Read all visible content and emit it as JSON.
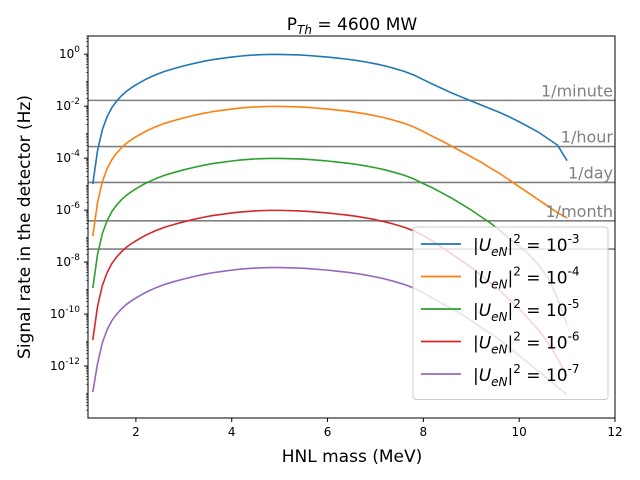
{
  "chart_data": {
    "type": "line",
    "title_base": "P",
    "title_sub": "Th",
    "title_rest": " = 4600 MW",
    "xlabel": "HNL mass (MeV)",
    "ylabel": "Signal rate in the detector (Hz)",
    "xlim": [
      1.0,
      12.0
    ],
    "ylim_log10": [
      -14.0,
      0.7
    ],
    "y_scale": "log",
    "grid": false,
    "legend_position": "lower-right",
    "x_ticks": [
      2,
      4,
      6,
      8,
      10,
      12
    ],
    "x_tick_labels": [
      "2",
      "4",
      "6",
      "8",
      "10",
      "12"
    ],
    "y_ticks": [
      {
        "exp": "0",
        "log10": 0
      },
      {
        "exp": "-2",
        "log10": -2
      },
      {
        "exp": "-4",
        "log10": -4
      },
      {
        "exp": "-6",
        "log10": -6
      },
      {
        "exp": "-8",
        "log10": -8
      },
      {
        "exp": "-10",
        "log10": -10
      },
      {
        "exp": "-12",
        "log10": -12
      }
    ],
    "hlines": [
      {
        "label": "1/minute",
        "value": 0.0167,
        "color": "#808080"
      },
      {
        "label": "1/hour",
        "value": 0.000278,
        "color": "#808080"
      },
      {
        "label": "1/day",
        "value": 1.16e-05,
        "color": "#808080"
      },
      {
        "label": "1/month",
        "value": 3.86e-07,
        "color": "#808080"
      },
      {
        "label": "",
        "value": 3.17e-08,
        "color": "#808080"
      }
    ],
    "x": [
      1.1,
      1.2,
      1.3,
      1.4,
      1.5,
      1.6,
      1.7,
      1.8,
      1.9,
      2.0,
      2.2,
      2.4,
      2.6,
      2.8,
      3.0,
      3.2,
      3.4,
      3.6,
      3.8,
      4.0,
      4.2,
      4.4,
      4.6,
      4.8,
      5.0,
      5.2,
      5.4,
      5.6,
      5.8,
      6.0,
      6.2,
      6.4,
      6.6,
      6.8,
      7.0,
      7.2,
      7.4,
      7.6,
      7.8,
      8.0,
      8.2,
      8.4,
      8.6,
      8.8,
      9.0,
      9.2,
      9.4,
      9.6,
      9.8,
      10.0,
      10.2,
      10.4,
      10.6,
      10.8,
      11.0
    ],
    "series": [
      {
        "label_base": "|U",
        "label_sub": "eN",
        "label_exp": "-3",
        "color": "#1f77b4",
        "log10_values": [
          -5.0,
          -3.7,
          -2.9,
          -2.4,
          -2.05,
          -1.8,
          -1.6,
          -1.43,
          -1.3,
          -1.18,
          -0.97,
          -0.8,
          -0.66,
          -0.55,
          -0.45,
          -0.36,
          -0.28,
          -0.21,
          -0.16,
          -0.11,
          -0.07,
          -0.04,
          -0.02,
          -0.01,
          -0.01,
          -0.02,
          -0.03,
          -0.05,
          -0.08,
          -0.11,
          -0.15,
          -0.19,
          -0.24,
          -0.3,
          -0.37,
          -0.45,
          -0.55,
          -0.66,
          -0.8,
          -0.98,
          -1.16,
          -1.33,
          -1.5,
          -1.65,
          -1.8,
          -1.95,
          -2.1,
          -2.25,
          -2.42,
          -2.6,
          -2.8,
          -3.0,
          -3.25,
          -3.5,
          -4.1
        ]
      },
      {
        "label_base": "|U",
        "label_sub": "eN",
        "label_exp": "-4",
        "color": "#ff7f0e",
        "log10_values": [
          -7.0,
          -5.7,
          -4.9,
          -4.4,
          -4.05,
          -3.8,
          -3.6,
          -3.43,
          -3.3,
          -3.18,
          -2.97,
          -2.8,
          -2.66,
          -2.55,
          -2.45,
          -2.36,
          -2.28,
          -2.21,
          -2.16,
          -2.11,
          -2.07,
          -2.04,
          -2.02,
          -2.01,
          -2.01,
          -2.02,
          -2.03,
          -2.05,
          -2.08,
          -2.11,
          -2.15,
          -2.19,
          -2.24,
          -2.3,
          -2.37,
          -2.45,
          -2.55,
          -2.66,
          -2.8,
          -2.98,
          -3.17,
          -3.35,
          -3.55,
          -3.75,
          -3.95,
          -4.15,
          -4.38,
          -4.6,
          -4.85,
          -5.1,
          -5.35,
          -5.6,
          -5.85,
          -6.1,
          -6.3
        ]
      },
      {
        "label_base": "|U",
        "label_sub": "eN",
        "label_exp": "-5",
        "color": "#2ca02c",
        "log10_values": [
          -9.0,
          -7.7,
          -6.9,
          -6.4,
          -6.05,
          -5.8,
          -5.6,
          -5.43,
          -5.3,
          -5.18,
          -4.97,
          -4.8,
          -4.66,
          -4.55,
          -4.45,
          -4.36,
          -4.28,
          -4.21,
          -4.16,
          -4.11,
          -4.07,
          -4.04,
          -4.02,
          -4.01,
          -4.01,
          -4.02,
          -4.03,
          -4.05,
          -4.08,
          -4.11,
          -4.15,
          -4.19,
          -4.24,
          -4.3,
          -4.37,
          -4.45,
          -4.55,
          -4.66,
          -4.8,
          -4.98,
          -5.15,
          -5.35,
          -5.55,
          -5.77,
          -6.0,
          -6.25,
          -6.5,
          -6.78,
          -7.1,
          -7.4,
          -7.7,
          -8.1,
          -8.6,
          -9.4,
          -10.4
        ]
      },
      {
        "label_base": "|U",
        "label_sub": "eN",
        "label_exp": "-6",
        "color": "#d62728",
        "log10_values": [
          -11.0,
          -9.7,
          -8.9,
          -8.4,
          -8.05,
          -7.8,
          -7.6,
          -7.43,
          -7.3,
          -7.18,
          -6.97,
          -6.8,
          -6.66,
          -6.55,
          -6.45,
          -6.36,
          -6.28,
          -6.21,
          -6.16,
          -6.11,
          -6.07,
          -6.04,
          -6.02,
          -6.01,
          -6.01,
          -6.02,
          -6.03,
          -6.05,
          -6.08,
          -6.11,
          -6.15,
          -6.19,
          -6.24,
          -6.3,
          -6.37,
          -6.45,
          -6.55,
          -6.66,
          -6.8,
          -6.98,
          -7.2,
          -7.45,
          -7.7,
          -7.95,
          -8.2,
          -8.5,
          -8.8,
          -9.1,
          -9.45,
          -9.8,
          -10.2,
          -10.6,
          -11.1,
          -11.7,
          -12.4
        ]
      },
      {
        "label_base": "|U",
        "label_sub": "eN",
        "label_exp": "-7",
        "color": "#9467bd",
        "log10_values": [
          -13.0,
          -11.9,
          -11.1,
          -10.6,
          -10.25,
          -10.0,
          -9.8,
          -9.63,
          -9.5,
          -9.38,
          -9.17,
          -9.0,
          -8.86,
          -8.75,
          -8.65,
          -8.56,
          -8.48,
          -8.41,
          -8.36,
          -8.31,
          -8.27,
          -8.24,
          -8.22,
          -8.21,
          -8.21,
          -8.22,
          -8.23,
          -8.25,
          -8.28,
          -8.31,
          -8.35,
          -8.39,
          -8.44,
          -8.5,
          -8.57,
          -8.65,
          -8.75,
          -8.86,
          -9.0,
          -9.18,
          -9.4,
          -9.6,
          -9.8,
          -10.0,
          -10.25,
          -10.5,
          -10.75,
          -11.0,
          -11.3,
          -11.6,
          -11.9,
          -12.2,
          -12.5,
          -12.8,
          -13.1
        ]
      }
    ]
  }
}
